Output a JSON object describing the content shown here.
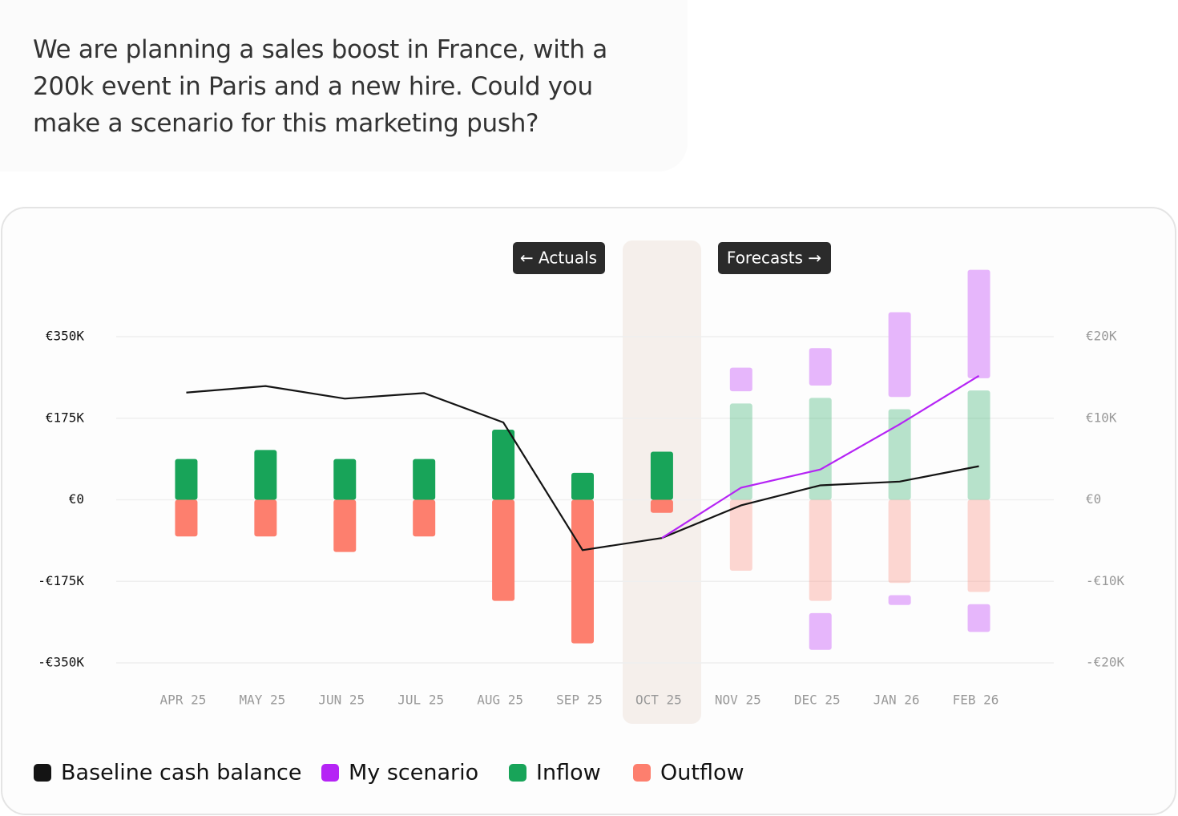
{
  "message": {
    "lines": [
      "We are planning a sales boost in France, with a",
      "200k event in Paris and a new hire. Could you",
      "make a scenario for this marketing push?"
    ]
  },
  "chart_data": {
    "type": "combo",
    "labels": {
      "actuals": "← Actuals",
      "forecasts": "Forecasts →"
    },
    "highlight": "OCT 25",
    "categories": [
      "APR 25",
      "MAY 25",
      "JUN 25",
      "JUL 25",
      "AUG 25",
      "SEP 25",
      "OCT 25",
      "NOV 25",
      "DEC 25",
      "JAN 26",
      "FEB 26"
    ],
    "ylim": [
      -350000,
      350000
    ],
    "yticks": [
      {
        "value": 350000,
        "label": "€350K"
      },
      {
        "value": 175000,
        "label": "€175K"
      },
      {
        "value": 0,
        "label": "€0"
      },
      {
        "value": -175000,
        "label": "-€175K"
      },
      {
        "value": -350000,
        "label": "-€350K"
      }
    ],
    "y2lim": [
      -20000,
      20000
    ],
    "y2ticks": [
      {
        "value": 20000,
        "label": "€20K"
      },
      {
        "value": 10000,
        "label": "€10K"
      },
      {
        "value": 0,
        "label": "€0"
      },
      {
        "value": -10000,
        "label": "-€10K"
      },
      {
        "value": -20000,
        "label": "-€20K"
      }
    ],
    "grid": true,
    "series": [
      {
        "name": "Baseline cash balance",
        "type": "line",
        "color": "#141414",
        "values": [
          230000,
          244000,
          217000,
          229000,
          166000,
          -108000,
          -82000,
          -12000,
          31000,
          39000,
          72000
        ]
      },
      {
        "name": "My scenario",
        "type": "line",
        "color": "#b524f5",
        "bar_color": "#e6b6fb",
        "values": [
          null,
          null,
          null,
          null,
          null,
          null,
          -82000,
          26000,
          65000,
          162000,
          266000
        ],
        "extra_inflow": [
          null,
          null,
          null,
          null,
          null,
          null,
          null,
          2900,
          4600,
          10400,
          13300
        ],
        "extra_outflow": [
          null,
          null,
          null,
          null,
          null,
          null,
          null,
          null,
          -4500,
          -1200,
          -3400
        ]
      },
      {
        "name": "Inflow",
        "type": "bar",
        "axis": "y2",
        "color": "#18a459",
        "values": [
          5000,
          6100,
          5000,
          5000,
          8600,
          3300,
          5900,
          11800,
          12500,
          11100,
          13400
        ]
      },
      {
        "name": "Outflow",
        "type": "bar",
        "axis": "y2",
        "color": "#fd7f6e",
        "values": [
          -4500,
          -4500,
          -6400,
          -4500,
          -12400,
          -17600,
          -1600,
          -8700,
          -12400,
          -10200,
          -11300
        ]
      }
    ]
  }
}
